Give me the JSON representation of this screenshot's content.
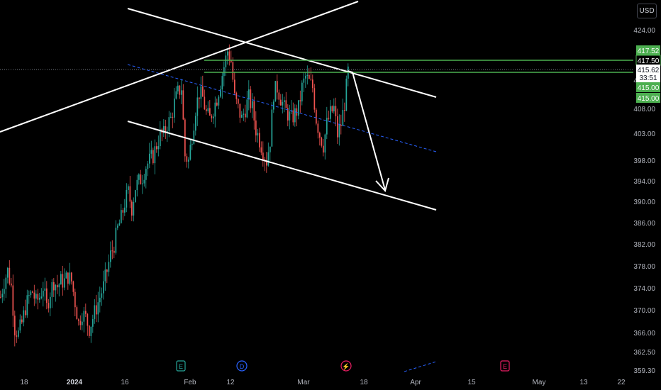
{
  "currency_label": "USD",
  "colors": {
    "background": "#000000",
    "up": "#26a69a",
    "down": "#ef5350",
    "trendline": "#ffffff",
    "support_level": "#4caf50",
    "midline": "#2962ff",
    "axis_text": "#b2b5be"
  },
  "y_axis": {
    "ticks": [
      "424.00",
      "412.00",
      "408.00",
      "403.00",
      "398.00",
      "394.00",
      "390.00",
      "386.00",
      "382.00",
      "378.00",
      "374.00",
      "370.00",
      "366.00",
      "362.50",
      "359.30"
    ],
    "ylim": [
      359.3,
      427.0
    ]
  },
  "x_axis": {
    "ticks": [
      {
        "label": "18",
        "bold": false
      },
      {
        "label": "2024",
        "bold": true
      },
      {
        "label": "16",
        "bold": false
      },
      {
        "label": "Feb",
        "bold": false
      },
      {
        "label": "12",
        "bold": false
      },
      {
        "label": "Mar",
        "bold": false
      },
      {
        "label": "18",
        "bold": false
      },
      {
        "label": "Apr",
        "bold": false
      },
      {
        "label": "15",
        "bold": false
      },
      {
        "label": "May",
        "bold": false
      },
      {
        "label": "13",
        "bold": false
      },
      {
        "label": "22",
        "bold": false
      }
    ]
  },
  "price_labels": [
    {
      "text": "417.52",
      "kind": "green"
    },
    {
      "text": "417.50",
      "kind": "green-outline"
    },
    {
      "text": "415.62",
      "kind": "current"
    },
    {
      "text": "33:51",
      "kind": "countdown"
    },
    {
      "text": "415.00",
      "kind": "green"
    },
    {
      "text": "415.00",
      "kind": "green"
    }
  ],
  "events": [
    {
      "letter": "E",
      "color": "#26a69a"
    },
    {
      "letter": "D",
      "color": "#2962ff"
    },
    {
      "letter": "⚡",
      "color": "#e91e63"
    },
    {
      "letter": "E",
      "color": "#e91e63"
    }
  ],
  "chart_data": {
    "type": "candlestick",
    "title": "",
    "xlabel": "",
    "ylabel": "",
    "currency": "USD",
    "last_price": 415.62,
    "horizontal_levels": [
      417.5,
      415.0
    ],
    "series_close_path": [
      [
        0,
        373
      ],
      [
        5,
        376
      ],
      [
        10,
        378
      ],
      [
        15,
        375
      ],
      [
        20,
        367
      ],
      [
        25,
        366
      ],
      [
        30,
        368
      ],
      [
        35,
        371
      ],
      [
        40,
        373
      ],
      [
        45,
        374
      ],
      [
        50,
        372
      ],
      [
        55,
        373
      ],
      [
        60,
        375
      ],
      [
        65,
        371
      ],
      [
        70,
        374
      ],
      [
        75,
        376
      ],
      [
        80,
        375
      ],
      [
        85,
        376
      ],
      [
        90,
        376
      ],
      [
        95,
        377
      ],
      [
        100,
        376
      ],
      [
        105,
        372
      ],
      [
        110,
        368
      ],
      [
        115,
        370
      ],
      [
        120,
        369
      ],
      [
        125,
        367
      ],
      [
        130,
        369
      ],
      [
        135,
        371
      ],
      [
        140,
        373
      ],
      [
        145,
        375
      ],
      [
        150,
        378
      ],
      [
        155,
        381
      ],
      [
        160,
        383
      ],
      [
        165,
        386
      ],
      [
        170,
        388
      ],
      [
        175,
        391
      ],
      [
        180,
        393
      ],
      [
        185,
        390
      ],
      [
        190,
        394
      ],
      [
        195,
        395
      ],
      [
        200,
        396
      ],
      [
        205,
        398
      ],
      [
        210,
        399
      ],
      [
        215,
        400
      ],
      [
        220,
        402
      ],
      [
        225,
        404
      ],
      [
        230,
        404
      ],
      [
        235,
        406
      ],
      [
        240,
        407
      ],
      [
        245,
        410
      ],
      [
        250,
        412
      ],
      [
        255,
        413
      ],
      [
        260,
        400
      ],
      [
        265,
        399
      ],
      [
        270,
        404
      ],
      [
        275,
        409
      ],
      [
        280,
        412
      ],
      [
        285,
        411
      ],
      [
        290,
        408
      ],
      [
        295,
        407
      ],
      [
        300,
        409
      ],
      [
        305,
        411
      ],
      [
        310,
        414
      ],
      [
        315,
        417
      ],
      [
        320,
        420
      ],
      [
        325,
        418
      ],
      [
        330,
        411
      ],
      [
        335,
        409
      ],
      [
        340,
        407
      ],
      [
        345,
        409
      ],
      [
        350,
        411
      ],
      [
        355,
        409
      ],
      [
        360,
        405
      ],
      [
        365,
        403
      ],
      [
        370,
        401
      ],
      [
        375,
        399
      ],
      [
        380,
        403
      ],
      [
        385,
        412
      ],
      [
        390,
        413
      ],
      [
        395,
        411
      ],
      [
        400,
        409
      ],
      [
        405,
        408
      ],
      [
        410,
        407
      ],
      [
        415,
        408
      ],
      [
        420,
        409
      ],
      [
        425,
        413
      ],
      [
        430,
        415
      ],
      [
        435,
        414
      ],
      [
        440,
        413
      ],
      [
        445,
        407
      ],
      [
        450,
        404
      ],
      [
        455,
        402
      ],
      [
        460,
        406
      ],
      [
        465,
        408
      ],
      [
        470,
        409
      ],
      [
        475,
        404
      ],
      [
        480,
        406
      ],
      [
        485,
        410
      ],
      [
        490,
        416
      ]
    ]
  }
}
